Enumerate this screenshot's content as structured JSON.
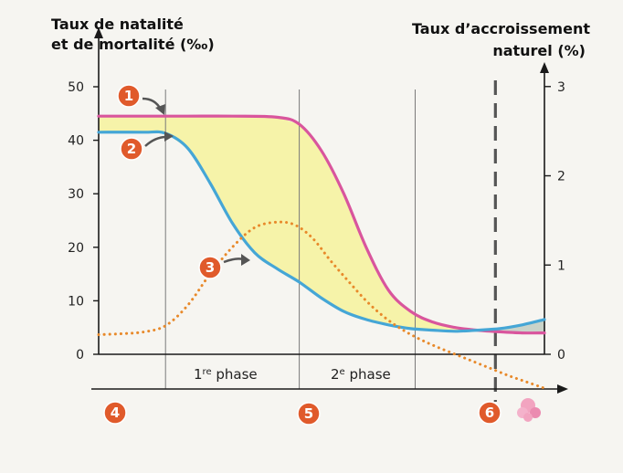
{
  "chart_data": {
    "type": "line",
    "x_range": [
      0,
      100
    ],
    "y_left": {
      "title_lines": [
        "Taux de natalité",
        "et de mortalité (‰)"
      ],
      "ticks": [
        0,
        10,
        20,
        30,
        40,
        50
      ],
      "ylim": [
        0,
        50
      ]
    },
    "y_right": {
      "title_lines": [
        "Taux d’accroissement",
        "naturel (%)"
      ],
      "ticks": [
        0,
        1,
        2,
        3
      ],
      "ylim": [
        0,
        3.1
      ]
    },
    "phase_dividers_x": [
      15,
      45,
      71
    ],
    "limit_line_x": [
      89
    ],
    "series": [
      {
        "marker": "1",
        "color": "#d9559d",
        "axis": "left",
        "x": [
          0,
          10,
          20,
          30,
          40,
          45,
          50,
          55,
          60,
          65,
          70,
          75,
          80,
          85,
          90,
          95,
          100
        ],
        "y": [
          44.5,
          44.5,
          44.5,
          44.5,
          44.3,
          43,
          38,
          30,
          20,
          12,
          8,
          6,
          5,
          4.5,
          4.2,
          4,
          4
        ]
      },
      {
        "marker": "2",
        "color": "#45a6d6",
        "axis": "left",
        "x": [
          0,
          10,
          15,
          20,
          25,
          30,
          35,
          40,
          45,
          50,
          55,
          60,
          65,
          70,
          75,
          80,
          85,
          90,
          95,
          100
        ],
        "y": [
          41.5,
          41.5,
          41.3,
          38.5,
          32,
          24.5,
          19,
          16,
          13.5,
          10.5,
          8,
          6.5,
          5.5,
          4.8,
          4.5,
          4.3,
          4.5,
          4.8,
          5.5,
          6.5
        ]
      },
      {
        "marker": "3",
        "color": "#e8892a",
        "axis": "right",
        "dashed": true,
        "x": [
          0,
          5,
          10,
          15,
          20,
          25,
          30,
          35,
          40,
          44,
          48,
          52,
          56,
          60,
          64,
          68,
          72,
          76,
          80,
          84,
          88,
          92,
          96,
          100
        ],
        "y": [
          0.22,
          0.23,
          0.25,
          0.32,
          0.55,
          0.9,
          1.2,
          1.42,
          1.48,
          1.45,
          1.3,
          1.05,
          0.82,
          0.6,
          0.42,
          0.28,
          0.17,
          0.08,
          0.0,
          -0.08,
          -0.16,
          -0.24,
          -0.31,
          -0.38
        ]
      }
    ],
    "phases": [
      "1",
      "re",
      " phase",
      "2",
      "e",
      " phase"
    ],
    "stages": [
      "4",
      "5",
      "6"
    ],
    "colors": {
      "gap_fill": "#f6f3a9",
      "axes": "#1a1a1a",
      "badge": "#e05a2b"
    }
  }
}
